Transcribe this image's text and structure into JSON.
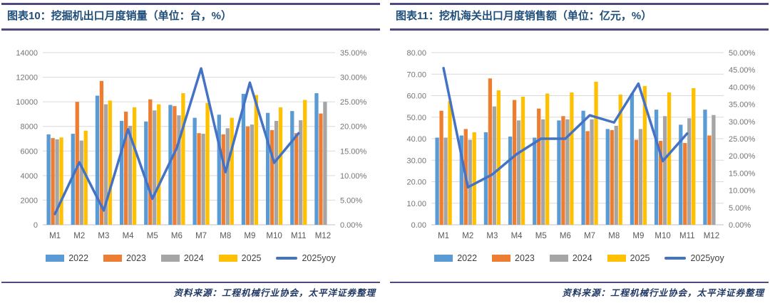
{
  "page_background": "#FFFFFF",
  "colors": {
    "bar_2022": "#5B9BD5",
    "bar_2023": "#ED7D31",
    "bar_2024": "#A5A5A5",
    "bar_2025": "#FFC000",
    "line_2025yoy": "#4472C4",
    "title_text": "#1F4E79",
    "rule": "#4E4A7E",
    "gridline": "#D9D9D9",
    "axis_line": "#BFBFBF",
    "tick_text": "#757575",
    "xlabel_text": "#595959",
    "legend_text": "#3F3F3F",
    "source_text": "#1F3864"
  },
  "panels": [
    {
      "figure_title": "图表10：挖掘机出口月度销量（单位：台，%）",
      "source_note": "资料来源：工程机械行业协会，太平洋证券整理"
    },
    {
      "figure_title": "图表11：挖机海关出口月度销售额（单位：亿元，%）",
      "source_note": "资料来源：工程机械行业协会，太平洋证券整理"
    }
  ],
  "chart_data": [
    {
      "type": "bar",
      "subtype": "grouped-bars-with-line-overlay",
      "title": "挖掘机出口月度销量（单位：台，%）",
      "categories": [
        "M1",
        "M2",
        "M3",
        "M4",
        "M5",
        "M6",
        "M7",
        "M8",
        "M9",
        "M10",
        "M11",
        "M12"
      ],
      "series": [
        {
          "name": "2022",
          "type": "bar",
          "color": "#5B9BD5",
          "values": [
            7350,
            7400,
            10500,
            8450,
            8400,
            9750,
            8700,
            8950,
            10650,
            9100,
            9250,
            10700
          ]
        },
        {
          "name": "2023",
          "type": "bar",
          "color": "#ED7D31",
          "values": [
            7050,
            10000,
            11700,
            9200,
            10200,
            9650,
            7450,
            7350,
            8000,
            7700,
            7450,
            9050
          ]
        },
        {
          "name": "2024",
          "type": "bar",
          "color": "#A5A5A5",
          "values": [
            6950,
            6850,
            9800,
            8050,
            9300,
            8900,
            7400,
            7850,
            8150,
            8450,
            8500,
            10000
          ]
        },
        {
          "name": "2025",
          "type": "bar",
          "color": "#FFC000",
          "values": [
            7100,
            7650,
            10100,
            9550,
            9800,
            10700,
            9900,
            8700,
            10550,
            9550,
            10150,
            null
          ]
        },
        {
          "name": "2025yoy",
          "type": "line",
          "axis": "right",
          "color": "#4472C4",
          "values": [
            2.2,
            12.7,
            2.9,
            19.4,
            5.3,
            15.6,
            31.8,
            10.7,
            28.9,
            12.6,
            18.6,
            null
          ]
        }
      ],
      "left_axis": {
        "min": 0,
        "max": 14000,
        "ticks": [
          "0",
          "2000",
          "4000",
          "6000",
          "8000",
          "10000",
          "12000",
          "14000"
        ]
      },
      "right_axis": {
        "min": 0,
        "max": 35,
        "ticks": [
          "0.00%",
          "5.00%",
          "10.00%",
          "15.00%",
          "20.00%",
          "25.00%",
          "30.00%",
          "35.00%"
        ]
      },
      "grid": true,
      "legend_position": "bottom"
    },
    {
      "type": "bar",
      "subtype": "grouped-bars-with-line-overlay",
      "title": "挖机海关出口月度销售额（单位：亿元，%）",
      "categories": [
        "M1",
        "M2",
        "M3",
        "M4",
        "M5",
        "M6",
        "M7",
        "M8",
        "M9",
        "M10",
        "M11",
        "M12"
      ],
      "series": [
        {
          "name": "2022",
          "type": "bar",
          "color": "#5B9BD5",
          "values": [
            40.5,
            41.5,
            43,
            41,
            40.5,
            48.5,
            53,
            44.5,
            61,
            53.5,
            46.5,
            53.5
          ]
        },
        {
          "name": "2023",
          "type": "bar",
          "color": "#ED7D31",
          "values": [
            53,
            44.5,
            68,
            58,
            54,
            50.5,
            43.5,
            44,
            39.5,
            39,
            38,
            41.5
          ]
        },
        {
          "name": "2024",
          "type": "bar",
          "color": "#A5A5A5",
          "values": [
            40.5,
            39.5,
            55,
            48.5,
            49,
            49,
            49,
            46,
            44.5,
            50.5,
            49.5,
            51
          ]
        },
        {
          "name": "2025",
          "type": "bar",
          "color": "#FFC000",
          "values": [
            57.5,
            43,
            62.5,
            59.5,
            61,
            61.5,
            66.5,
            60.5,
            64.5,
            61.5,
            63.5,
            null
          ]
        },
        {
          "name": "2025yoy",
          "type": "line",
          "axis": "right",
          "color": "#4472C4",
          "values": [
            45.5,
            10.9,
            14.6,
            20.5,
            25,
            25,
            31.8,
            29.7,
            41,
            18.5,
            26.5,
            null
          ]
        }
      ],
      "left_axis": {
        "min": 0,
        "max": 80,
        "ticks": [
          "0.00",
          "10.00",
          "20.00",
          "30.00",
          "40.00",
          "50.00",
          "60.00",
          "70.00",
          "80.00"
        ]
      },
      "right_axis": {
        "min": 0,
        "max": 50,
        "ticks": [
          "0.00%",
          "5.00%",
          "10.00%",
          "15.00%",
          "20.00%",
          "25.00%",
          "30.00%",
          "35.00%",
          "40.00%",
          "45.00%",
          "50.00%"
        ]
      },
      "grid": true,
      "legend_position": "bottom"
    }
  ]
}
